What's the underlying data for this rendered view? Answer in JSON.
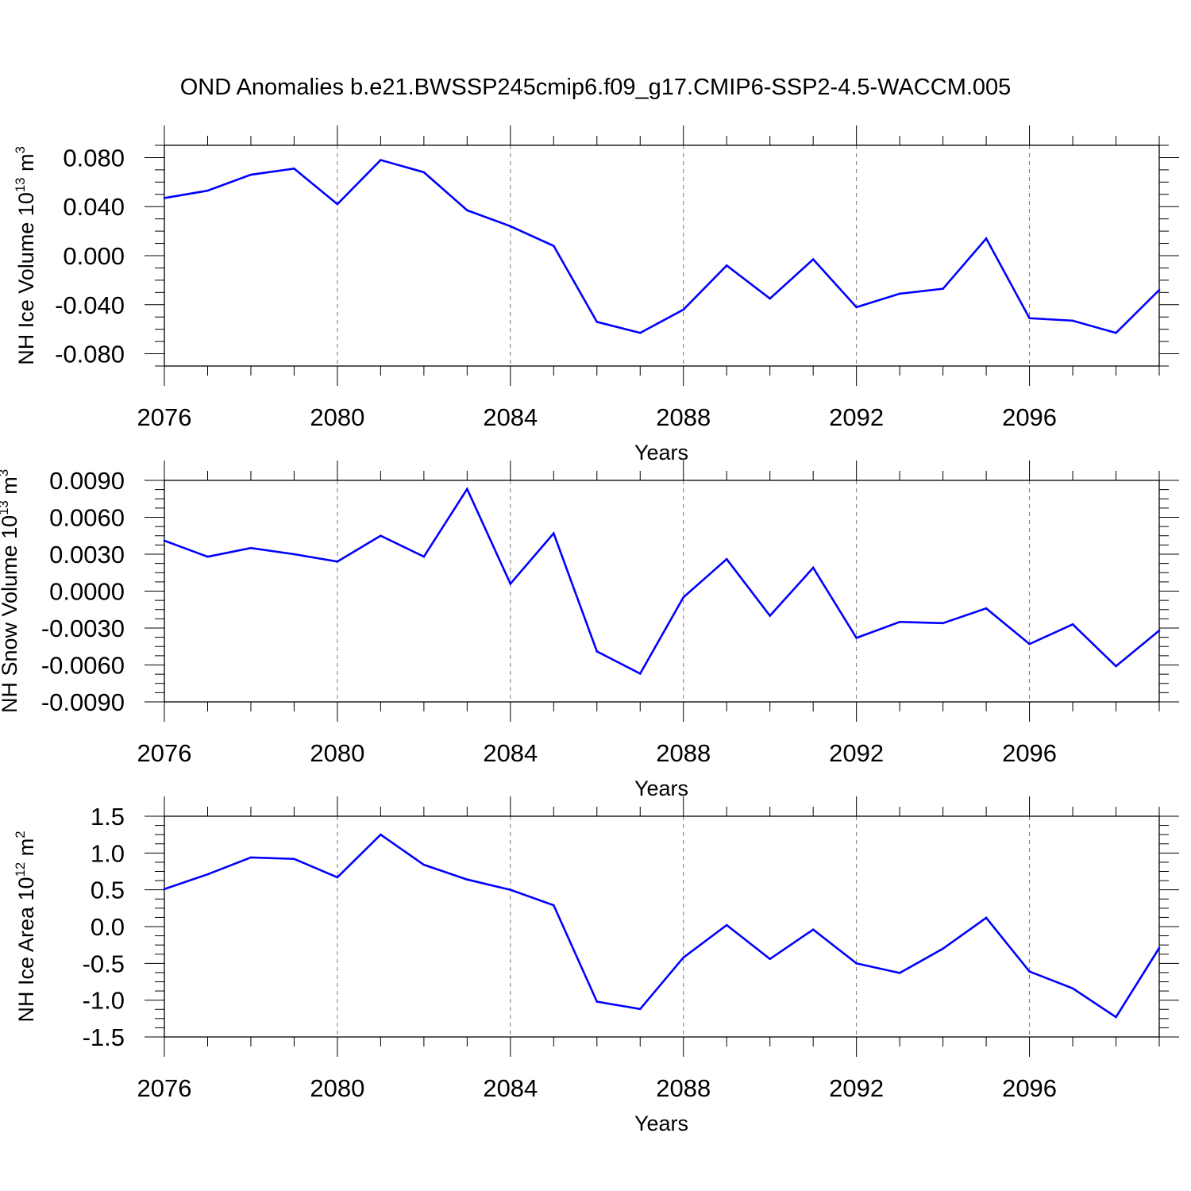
{
  "title": "OND Anomalies b.e21.BWSSP245cmip6.f09_g17.CMIP6-SSP2-4.5-WACCM.005",
  "colors": {
    "line": "#0000ff",
    "axis": "#000000",
    "grid": "#777777"
  },
  "chart_data": [
    {
      "type": "line",
      "ylabel_main": "NH Ice Volume 10",
      "ylabel_exp": "13",
      "ylabel_unit": " m",
      "ylabel_unit_exp": "3",
      "xlabel": "Years",
      "xlim": [
        2076,
        2099
      ],
      "ylim": [
        -0.09,
        0.09
      ],
      "yticks": [
        0.08,
        0.04,
        0.0,
        -0.04,
        -0.08
      ],
      "ytick_labels": [
        "0.080",
        "0.040",
        "0.000",
        "-0.040",
        "-0.080"
      ],
      "xticks": [
        2076,
        2080,
        2084,
        2088,
        2092,
        2096
      ],
      "xtick_labels": [
        "2076",
        "2080",
        "2084",
        "2088",
        "2092",
        "2096"
      ],
      "x": [
        2076,
        2077,
        2078,
        2079,
        2080,
        2081,
        2082,
        2083,
        2084,
        2085,
        2086,
        2087,
        2088,
        2089,
        2090,
        2091,
        2092,
        2093,
        2094,
        2095,
        2096,
        2097,
        2098,
        2099
      ],
      "values": [
        0.047,
        0.053,
        0.066,
        0.071,
        0.042,
        0.078,
        0.068,
        0.037,
        0.024,
        0.008,
        -0.054,
        -0.063,
        -0.044,
        -0.008,
        -0.035,
        -0.003,
        -0.042,
        -0.031,
        -0.027,
        0.014,
        -0.051,
        -0.053,
        -0.063,
        -0.028
      ]
    },
    {
      "type": "line",
      "ylabel_main": "NH Snow Volume 10",
      "ylabel_exp": "13",
      "ylabel_unit": " m",
      "ylabel_unit_exp": "3",
      "xlabel": "Years",
      "xlim": [
        2076,
        2099
      ],
      "ylim": [
        -0.009,
        0.009
      ],
      "yticks": [
        0.009,
        0.006,
        0.003,
        0.0,
        -0.003,
        -0.006,
        -0.009
      ],
      "ytick_labels": [
        "0.0090",
        "0.0060",
        "0.0030",
        "0.0000",
        "-0.0030",
        "-0.0060",
        "-0.0090"
      ],
      "xticks": [
        2076,
        2080,
        2084,
        2088,
        2092,
        2096
      ],
      "xtick_labels": [
        "2076",
        "2080",
        "2084",
        "2088",
        "2092",
        "2096"
      ],
      "x": [
        2076,
        2077,
        2078,
        2079,
        2080,
        2081,
        2082,
        2083,
        2084,
        2085,
        2086,
        2087,
        2088,
        2089,
        2090,
        2091,
        2092,
        2093,
        2094,
        2095,
        2096,
        2097,
        2098,
        2099
      ],
      "values": [
        0.0041,
        0.0028,
        0.0035,
        0.003,
        0.0024,
        0.0045,
        0.0028,
        0.0083,
        0.0006,
        0.0047,
        -0.0049,
        -0.0067,
        -0.0005,
        0.0026,
        -0.002,
        0.0019,
        -0.0038,
        -0.0025,
        -0.0026,
        -0.0014,
        -0.0043,
        -0.0027,
        -0.0061,
        -0.0032
      ]
    },
    {
      "type": "line",
      "ylabel_main": "NH Ice Area 10",
      "ylabel_exp": "12",
      "ylabel_unit": " m",
      "ylabel_unit_exp": "2",
      "xlabel": "Years",
      "xlim": [
        2076,
        2099
      ],
      "ylim": [
        -1.5,
        1.5
      ],
      "yticks": [
        1.5,
        1.0,
        0.5,
        0.0,
        -0.5,
        -1.0,
        -1.5
      ],
      "ytick_labels": [
        "1.5",
        "1.0",
        "0.5",
        "0.0",
        "-0.5",
        "-1.0",
        "-1.5"
      ],
      "xticks": [
        2076,
        2080,
        2084,
        2088,
        2092,
        2096
      ],
      "xtick_labels": [
        "2076",
        "2080",
        "2084",
        "2088",
        "2092",
        "2096"
      ],
      "x": [
        2076,
        2077,
        2078,
        2079,
        2080,
        2081,
        2082,
        2083,
        2084,
        2085,
        2086,
        2087,
        2088,
        2089,
        2090,
        2091,
        2092,
        2093,
        2094,
        2095,
        2096,
        2097,
        2098,
        2099
      ],
      "values": [
        0.51,
        0.71,
        0.94,
        0.92,
        0.67,
        1.25,
        0.84,
        0.64,
        0.5,
        0.29,
        -1.02,
        -1.12,
        -0.42,
        0.02,
        -0.44,
        -0.04,
        -0.5,
        -0.63,
        -0.3,
        0.12,
        -0.61,
        -0.84,
        -1.23,
        -0.29
      ]
    }
  ]
}
